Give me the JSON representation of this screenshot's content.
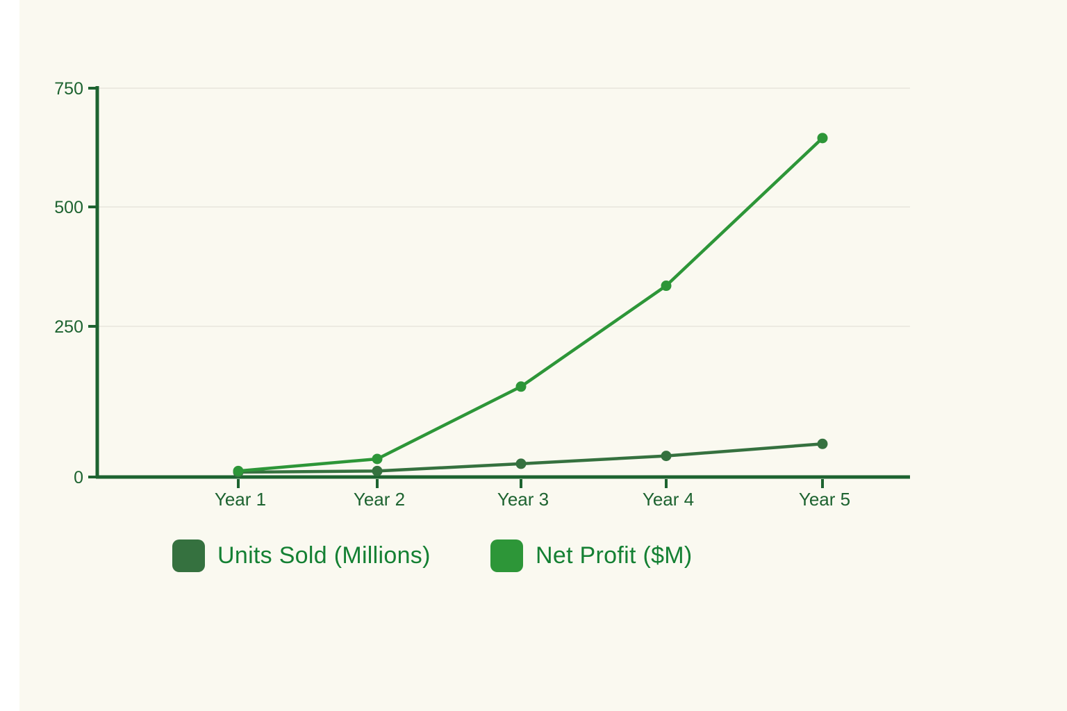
{
  "background_color": "#FAF9F0",
  "chart_data": {
    "type": "line",
    "title": "",
    "xlabel": "",
    "ylabel": "",
    "categories": [
      "Year 1",
      "Year 2",
      "Year 3",
      "Year 4",
      "Year 5"
    ],
    "series": [
      {
        "name": "Units Sold (Millions)",
        "color": "#35713F",
        "values": [
          8,
          10,
          22,
          35,
          55
        ]
      },
      {
        "name": "Net Profit ($M)",
        "color": "#2D9638",
        "values": [
          10,
          30,
          150,
          335,
          645
        ]
      }
    ],
    "ylim": [
      0,
      750
    ],
    "yticks": [
      0,
      250,
      500,
      750
    ],
    "grid": "horizontal",
    "legend_position": "bottom",
    "axis_color": "#1D6330",
    "grid_color": "#ECEAE1",
    "tick_label_color": "#1D6330",
    "legend_text_color": "#148033",
    "marker": "circle"
  },
  "legend": {
    "items": [
      {
        "label": "Units Sold (Millions)",
        "swatch_color": "#35713F"
      },
      {
        "label": "Net Profit ($M)",
        "swatch_color": "#2D9638"
      }
    ]
  }
}
